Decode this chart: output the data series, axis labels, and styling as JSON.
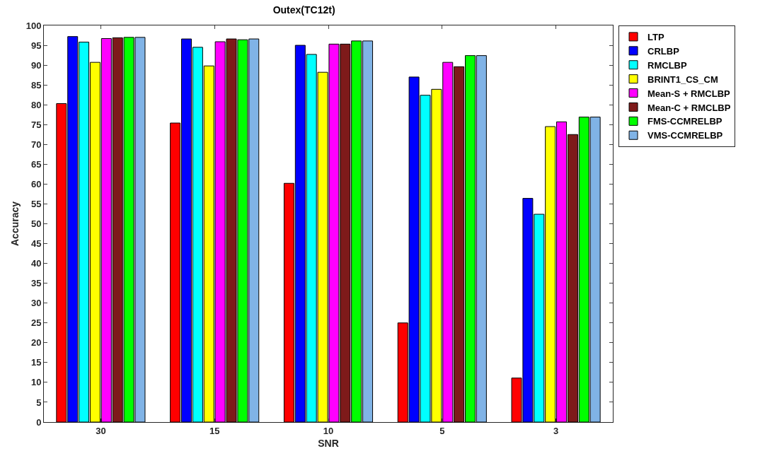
{
  "chart_data": {
    "type": "bar",
    "title": "Outex(TC12t)",
    "xlabel": "SNR",
    "ylabel": "Accuracy",
    "categories": [
      "30",
      "15",
      "10",
      "5",
      "3"
    ],
    "series": [
      {
        "name": "LTP",
        "color": "#ff0000",
        "values": [
          80.3,
          75.4,
          60.2,
          25.0,
          11.1
        ]
      },
      {
        "name": "CRLBP",
        "color": "#0000ff",
        "values": [
          97.2,
          96.6,
          95.0,
          87.0,
          56.4
        ]
      },
      {
        "name": "RMCLBP",
        "color": "#00ffff",
        "values": [
          95.8,
          94.5,
          92.7,
          82.4,
          52.4
        ]
      },
      {
        "name": "BRINT1_CS_CM",
        "color": "#ffff00",
        "values": [
          90.7,
          89.8,
          88.2,
          83.9,
          74.5
        ]
      },
      {
        "name": "Mean-S + RMCLBP",
        "color": "#ff00ff",
        "values": [
          96.7,
          95.9,
          95.3,
          90.7,
          75.7
        ]
      },
      {
        "name": "Mean-C + RMCLBP",
        "color": "#7e1a1a",
        "values": [
          96.9,
          96.6,
          95.3,
          89.6,
          72.5
        ]
      },
      {
        "name": "FMS-CCMRELBP",
        "color": "#00ff00",
        "values": [
          97.0,
          96.4,
          96.1,
          92.4,
          76.9
        ]
      },
      {
        "name": "VMS-CCMRELBP",
        "color": "#80b3e6",
        "values": [
          97.0,
          96.6,
          96.1,
          92.4,
          76.9
        ]
      }
    ],
    "ylim": [
      0,
      100
    ],
    "yticks": [
      0,
      5,
      10,
      15,
      20,
      25,
      30,
      35,
      40,
      45,
      50,
      55,
      60,
      65,
      70,
      75,
      80,
      85,
      90,
      95,
      100
    ],
    "grid": false,
    "legend": "top right"
  }
}
